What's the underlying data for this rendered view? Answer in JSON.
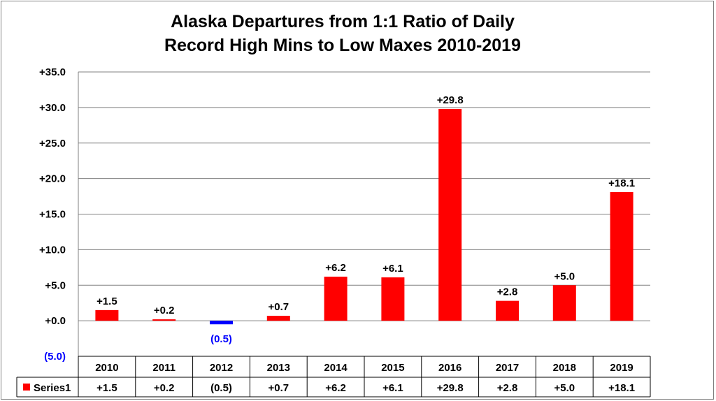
{
  "chart_data": {
    "type": "bar",
    "title_lines": [
      "Alaska Departures from 1:1 Ratio of Daily",
      "Record High Mins to Low Maxes 2010-2019"
    ],
    "categories": [
      "2010",
      "2011",
      "2012",
      "2013",
      "2014",
      "2015",
      "2016",
      "2017",
      "2018",
      "2019"
    ],
    "series": [
      {
        "name": "Series1",
        "values": [
          1.5,
          0.2,
          -0.5,
          0.7,
          6.2,
          6.1,
          29.8,
          2.8,
          5.0,
          18.1
        ],
        "data_labels": [
          "+1.5",
          "+0.2",
          "(0.5)",
          "+0.7",
          "+6.2",
          "+6.1",
          "+29.8",
          "+2.8",
          "+5.0",
          "+18.1"
        ]
      }
    ],
    "y_ticks": [
      {
        "value": 35,
        "label": "+35.0"
      },
      {
        "value": 30,
        "label": "+30.0"
      },
      {
        "value": 25,
        "label": "+25.0"
      },
      {
        "value": 20,
        "label": "+20.0"
      },
      {
        "value": 15,
        "label": "+15.0"
      },
      {
        "value": 10,
        "label": "+10.0"
      },
      {
        "value": 5,
        "label": "+5.0"
      },
      {
        "value": 0,
        "label": "+0.0"
      },
      {
        "value": -5,
        "label": "(5.0)"
      }
    ],
    "ylim": [
      -5,
      35
    ],
    "grid": true,
    "data_table": {
      "legend_label": "Series1",
      "row": [
        "+1.5",
        "+0.2",
        "(0.5)",
        "+0.7",
        "+6.2",
        "+6.1",
        "+29.8",
        "+2.8",
        "+5.0",
        "+18.1"
      ]
    },
    "colors": {
      "positive": "#ff0000",
      "negative": "#0000ff",
      "grid": "#808080",
      "negative_label": "#0000ff"
    }
  }
}
